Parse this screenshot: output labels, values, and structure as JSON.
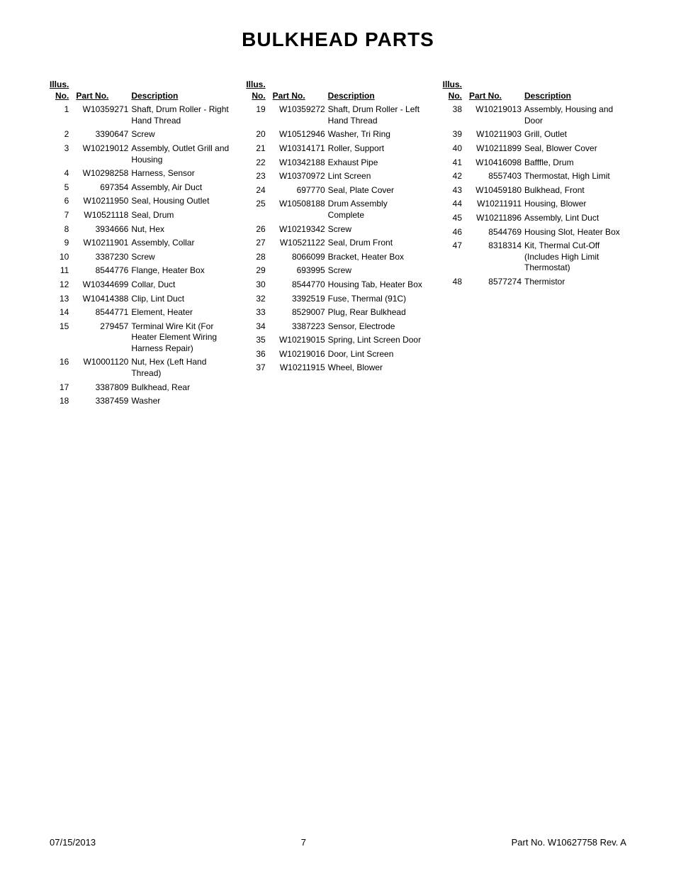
{
  "title": "BULKHEAD PARTS",
  "headers": {
    "illus_line1": "Illus.",
    "illus_line2": "No.",
    "part_no": "Part No.",
    "description": "Description"
  },
  "columns": [
    {
      "rows": [
        {
          "n": "1",
          "p": "W10359271",
          "d": "Shaft, Drum Roller - Right Hand Thread",
          "sp": true
        },
        {
          "n": "2",
          "p": "3390647",
          "d": "Screw"
        },
        {
          "n": "3",
          "p": "W10219012",
          "d": "Assembly, Outlet Grill and Housing"
        },
        {
          "n": "4",
          "p": "W10298258",
          "d": "Harness, Sensor"
        },
        {
          "n": "5",
          "p": "697354",
          "d": "Assembly, Air Duct"
        },
        {
          "n": "6",
          "p": "W10211950",
          "d": "Seal, Housing Outlet",
          "sp": true
        },
        {
          "n": "7",
          "p": "W10521118",
          "d": "Seal, Drum",
          "sp": true
        },
        {
          "n": "8",
          "p": "3934666",
          "d": "Nut, Hex"
        },
        {
          "n": "9",
          "p": "W10211901",
          "d": "Assembly, Collar"
        },
        {
          "n": "10",
          "p": "3387230",
          "d": "Screw"
        },
        {
          "n": "11",
          "p": "8544776",
          "d": "Flange, Heater Box"
        },
        {
          "n": "12",
          "p": "W10344699",
          "d": "Collar, Duct",
          "sp": true
        },
        {
          "n": "13",
          "p": "W10414388",
          "d": "Clip, Lint Duct"
        },
        {
          "n": "14",
          "p": "8544771",
          "d": "Element, Heater"
        },
        {
          "n": "15",
          "p": "279457",
          "d": "Terminal Wire Kit (For Heater Element Wiring Harness Repair)"
        },
        {
          "n": "16",
          "p": "W10001120",
          "d": "Nut, Hex (Left Hand Thread)"
        },
        {
          "n": "17",
          "p": "3387809",
          "d": "Bulkhead, Rear"
        },
        {
          "n": "18",
          "p": "3387459",
          "d": "Washer"
        }
      ]
    },
    {
      "rows": [
        {
          "n": "19",
          "p": "W10359272",
          "d": "Shaft, Drum Roller - Left Hand Thread",
          "sp": true
        },
        {
          "n": "20",
          "p": "W10512946",
          "d": "Washer, Tri Ring"
        },
        {
          "n": "21",
          "p": "W10314171",
          "d": "Roller, Support"
        },
        {
          "n": "22",
          "p": "W10342188",
          "d": "Exhaust Pipe"
        },
        {
          "n": "23",
          "p": "W10370972",
          "d": "Lint Screen"
        },
        {
          "n": "24",
          "p": "697770",
          "d": "Seal, Plate Cover"
        },
        {
          "n": "25",
          "p": "W10508188",
          "d": "Drum Assembly Complete",
          "sp": true
        },
        {
          "n": "26",
          "p": "W10219342",
          "d": "Screw"
        },
        {
          "n": "27",
          "p": "W10521122",
          "d": "Seal, Drum Front"
        },
        {
          "n": "28",
          "p": "8066099",
          "d": "Bracket, Heater Box"
        },
        {
          "n": "29",
          "p": "693995",
          "d": "Screw",
          "sp": true
        },
        {
          "n": "30",
          "p": "8544770",
          "d": "Housing Tab, Heater Box"
        },
        {
          "n": "32",
          "p": "3392519",
          "d": "Fuse, Thermal (91C)"
        },
        {
          "n": "33",
          "p": "8529007",
          "d": "Plug, Rear Bulkhead",
          "sp": true
        },
        {
          "n": "34",
          "p": "3387223",
          "d": "Sensor, Electrode",
          "sp": true
        },
        {
          "n": "35",
          "p": "W10219015",
          "d": "Spring, Lint Screen Door",
          "sp": true
        },
        {
          "n": "36",
          "p": "W10219016",
          "d": "Door, Lint Screen",
          "sp": true
        },
        {
          "n": "37",
          "p": "W10211915",
          "d": "Wheel, Blower",
          "sp": true
        }
      ]
    },
    {
      "rows": [
        {
          "n": "38",
          "p": "W10219013",
          "d": "Assembly, Housing and Door",
          "sp": true
        },
        {
          "n": "39",
          "p": "W10211903",
          "d": "Grill, Outlet"
        },
        {
          "n": "40",
          "p": "W10211899",
          "d": "Seal, Blower Cover"
        },
        {
          "n": "41",
          "p": "W10416098",
          "d": "Bafffle, Drum",
          "sp": true
        },
        {
          "n": "42",
          "p": "8557403",
          "d": "Thermostat, High Limit"
        },
        {
          "n": "43",
          "p": "W10459180",
          "d": "Bulkhead, Front",
          "sp": true
        },
        {
          "n": "44",
          "p": "W10211911",
          "d": "Housing, Blower"
        },
        {
          "n": "45",
          "p": "W10211896",
          "d": "Assembly, Lint Duct"
        },
        {
          "n": "46",
          "p": "8544769",
          "d": "Housing Slot, Heater Box",
          "sp": true
        },
        {
          "n": "47",
          "p": "8318314",
          "d": "Kit, Thermal Cut-Off (Includes High Limit Thermostat)"
        },
        {
          "n": "48",
          "p": "8577274",
          "d": "Thermistor"
        }
      ]
    }
  ],
  "footer": {
    "date": "07/15/2013",
    "page": "7",
    "rev": "Part No.  W10627758  Rev.  A"
  },
  "style": {
    "background_color": "#ffffff",
    "text_color": "#000000",
    "title_fontsize": 28,
    "body_fontsize": 12,
    "footer_fontsize": 13
  }
}
